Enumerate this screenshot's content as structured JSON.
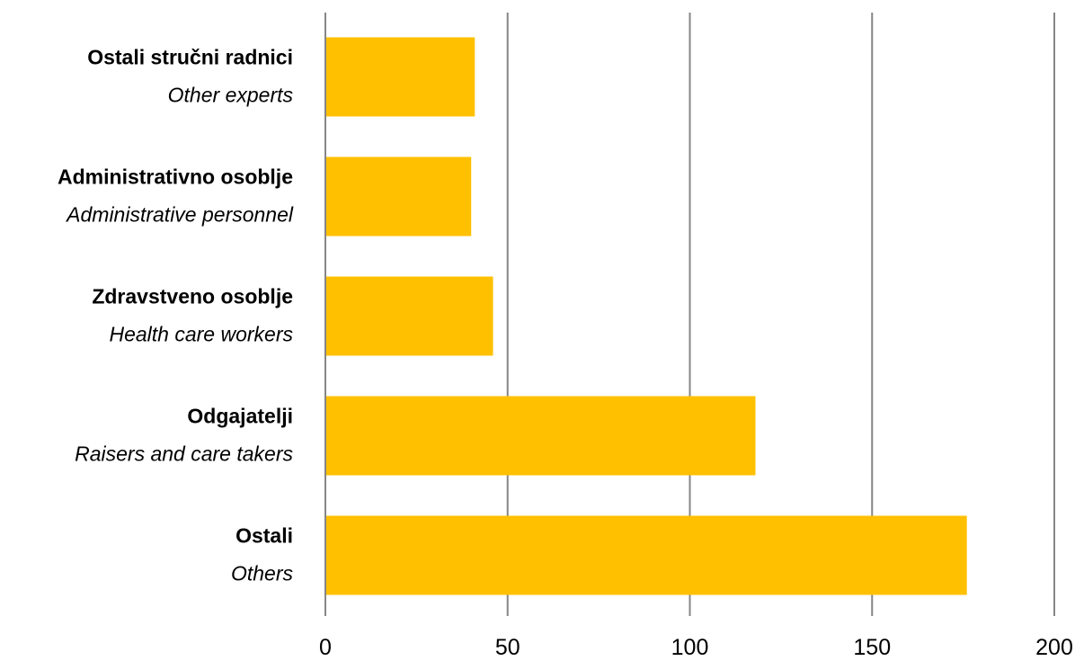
{
  "chart_data": {
    "type": "bar",
    "orientation": "horizontal",
    "categories": [
      {
        "label": "Ostali stručni radnici",
        "sublabel": "Other experts"
      },
      {
        "label": "Administrativno osoblje",
        "sublabel": "Administrative personnel"
      },
      {
        "label": "Zdravstveno osoblje",
        "sublabel": "Health care workers"
      },
      {
        "label": "Odgajatelji",
        "sublabel": "Raisers and care takers"
      },
      {
        "label": "Ostali",
        "sublabel": "Others"
      }
    ],
    "values": [
      41,
      40,
      46,
      118,
      176
    ],
    "xlim": [
      0,
      200
    ],
    "xticks": [
      "0",
      "50",
      "100",
      "150",
      "200"
    ],
    "grid": "vertical",
    "bar_color": "#FFC000",
    "grid_color": "#868686"
  }
}
